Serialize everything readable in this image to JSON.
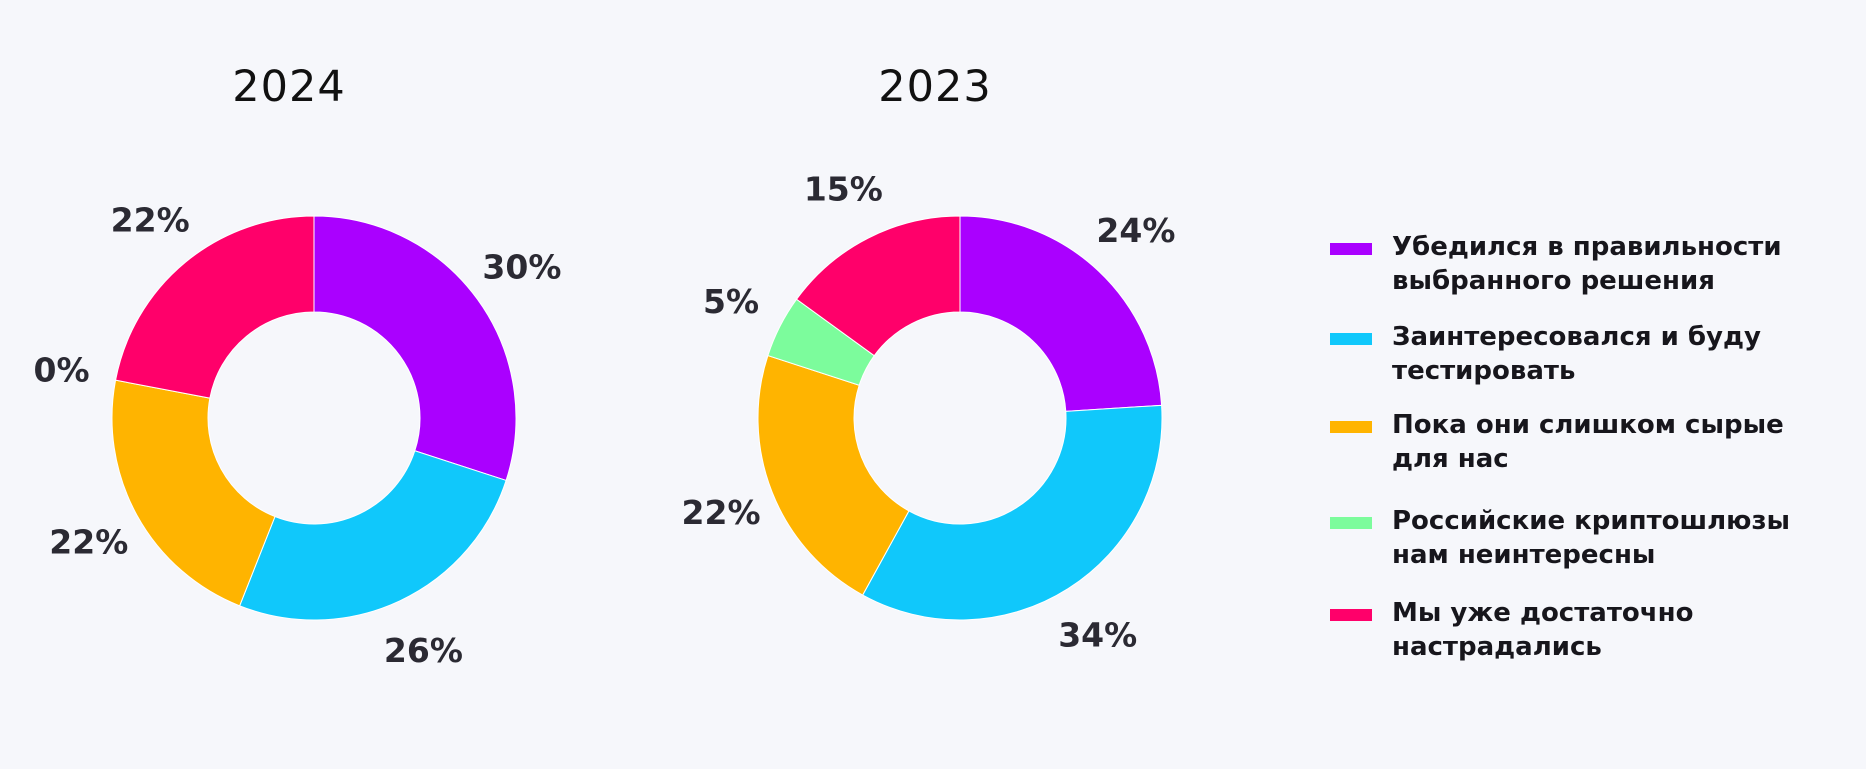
{
  "chart_data": [
    {
      "type": "pie",
      "variant": "donut",
      "title": "2024",
      "categories": [
        "Убедился в правильности выбранного решения",
        "Заинтересовался и буду тестировать",
        "Пока они слишком сырые для нас",
        "Российские криптошлюзы нам неинтересны",
        "Мы уже достаточно настрадались"
      ],
      "values": [
        30,
        26,
        22,
        0,
        22
      ],
      "labels": [
        "30%",
        "26%",
        "22%",
        "0%",
        "22%"
      ]
    },
    {
      "type": "pie",
      "variant": "donut",
      "title": "2023",
      "categories": [
        "Убедился в правильности выбранного решения",
        "Заинтересовался и буду тестировать",
        "Пока они слишком сырые для нас",
        "Российские криптошлюзы нам неинтересны",
        "Мы уже достаточно настрадались"
      ],
      "values": [
        24,
        34,
        22,
        5,
        15
      ],
      "labels": [
        "24%",
        "34%",
        "22%",
        "5%",
        "15%"
      ]
    }
  ],
  "colors": [
    "#aa00ff",
    "#10c8fb",
    "#ffb400",
    "#7cfc9c",
    "#ff006a"
  ],
  "legend": {
    "placement": "right",
    "items": [
      {
        "label_line1": "Убедился в правильности",
        "label_line2": "выбранного решения",
        "color": "#aa00ff"
      },
      {
        "label_line1": "Заинтересовался и буду",
        "label_line2": "тестировать",
        "color": "#10c8fb"
      },
      {
        "label_line1": "Пока они слишком сырые",
        "label_line2": "для нас",
        "color": "#ffb400"
      },
      {
        "label_line1": "Российские криптошлюзы",
        "label_line2": "нам неинтересны",
        "color": "#7cfc9c"
      },
      {
        "label_line1": "Мы уже достаточно",
        "label_line2": "настрадались",
        "color": "#ff006a"
      }
    ]
  }
}
